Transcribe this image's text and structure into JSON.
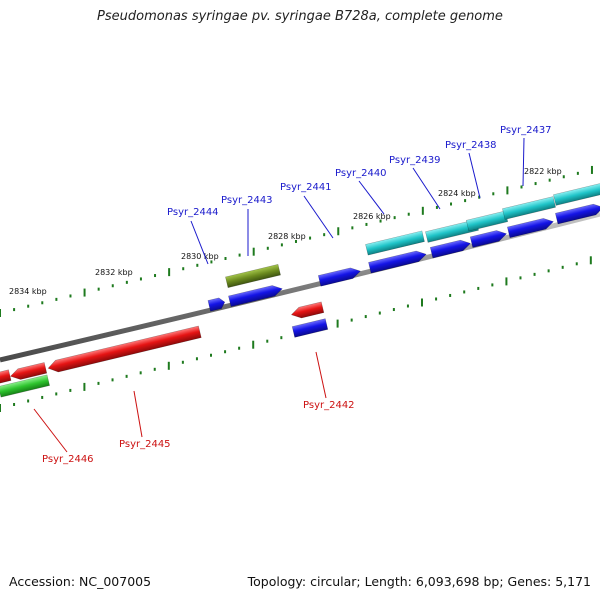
{
  "title": "Pseudomonas syringae pv. syringae B728a, complete genome",
  "footer": {
    "accession": "Accession: NC_007005",
    "stats": "Topology: circular; Length: 6,093,698 bp; Genes: 5,171"
  },
  "colors": {
    "forward_label": "#1a1acc",
    "reverse_label": "#cc1111",
    "cds_forward": "#1414e6",
    "cds_reverse": "#e61414",
    "cog_teal": "#1fc4c8",
    "cog_olive": "#6b8a1e",
    "cog_green": "#2ec42e",
    "backbone": "#8a8a8a",
    "tick": "#1e7a1e"
  },
  "scale": {
    "labels": [
      "2834 kbp",
      "2832 kbp",
      "2830 kbp",
      "2828 kbp",
      "2826 kbp",
      "2824 kbp",
      "2822 kbp"
    ]
  },
  "genes": {
    "forward": [
      "Psyr_2444",
      "Psyr_2443",
      "Psyr_2441",
      "Psyr_2440",
      "Psyr_2439",
      "Psyr_2438",
      "Psyr_2437"
    ],
    "reverse": [
      "Psyr_2446",
      "Psyr_2445",
      "Psyr_2442"
    ]
  }
}
